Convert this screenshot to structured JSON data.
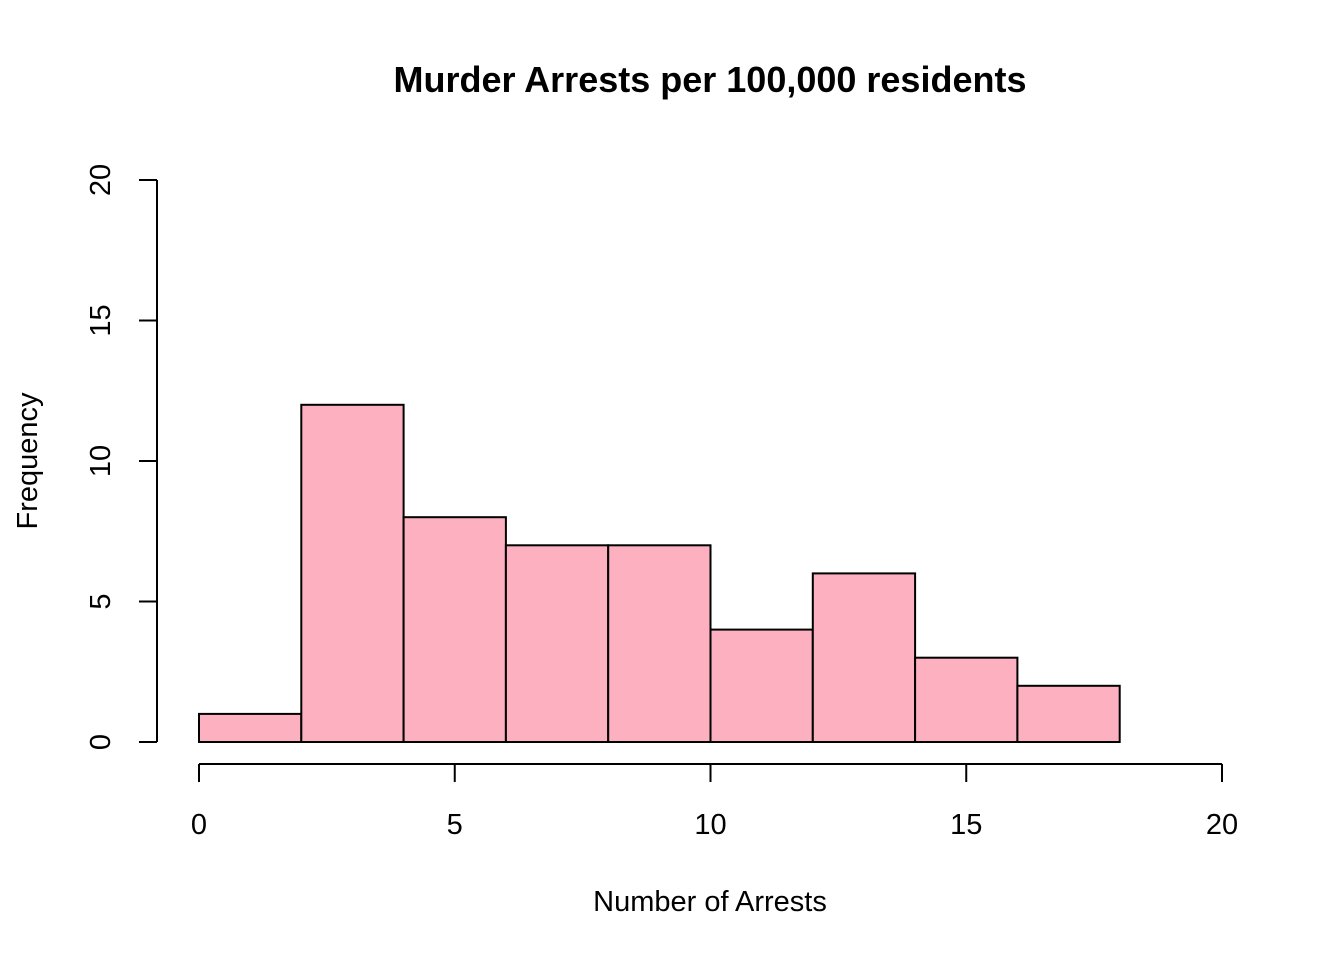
{
  "chart_data": {
    "type": "bar",
    "subtype": "histogram",
    "title": "Murder Arrests per 100,000 residents",
    "xlabel": "Number of Arrests",
    "ylabel": "Frequency",
    "bins": [
      {
        "start": 0,
        "end": 2,
        "count": 1
      },
      {
        "start": 2,
        "end": 4,
        "count": 12
      },
      {
        "start": 4,
        "end": 6,
        "count": 8
      },
      {
        "start": 6,
        "end": 8,
        "count": 7
      },
      {
        "start": 8,
        "end": 10,
        "count": 7
      },
      {
        "start": 10,
        "end": 12,
        "count": 4
      },
      {
        "start": 12,
        "end": 14,
        "count": 6
      },
      {
        "start": 14,
        "end": 16,
        "count": 3
      },
      {
        "start": 16,
        "end": 18,
        "count": 2
      }
    ],
    "xlim": [
      0,
      20
    ],
    "ylim": [
      0,
      20
    ],
    "xticks": [
      0,
      5,
      10,
      15,
      20
    ],
    "yticks": [
      0,
      5,
      10,
      15,
      20
    ],
    "bar_color": "#FDB0C0",
    "edge_color": "#000000",
    "grid": false,
    "legend": "none"
  }
}
